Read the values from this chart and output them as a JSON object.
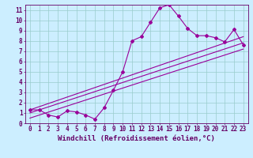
{
  "xlabel": "Windchill (Refroidissement éolien,°C)",
  "bg_color": "#cceeff",
  "line_color": "#990099",
  "xlim": [
    -0.5,
    23.5
  ],
  "ylim": [
    0,
    11.5
  ],
  "xticks": [
    0,
    1,
    2,
    3,
    4,
    5,
    6,
    7,
    8,
    9,
    10,
    11,
    12,
    13,
    14,
    15,
    16,
    17,
    18,
    19,
    20,
    21,
    22,
    23
  ],
  "yticks": [
    0,
    1,
    2,
    3,
    4,
    5,
    6,
    7,
    8,
    9,
    10,
    11
  ],
  "scatter_x": [
    0,
    1,
    2,
    3,
    4,
    5,
    6,
    7,
    8,
    9,
    10,
    11,
    12,
    13,
    14,
    15,
    16,
    17,
    18,
    19,
    20,
    21,
    22,
    23
  ],
  "scatter_y": [
    1.3,
    1.3,
    0.8,
    0.6,
    1.2,
    1.1,
    0.8,
    0.4,
    1.5,
    3.2,
    5.0,
    8.0,
    8.4,
    9.8,
    11.2,
    11.5,
    10.4,
    9.2,
    8.5,
    8.5,
    8.3,
    7.9,
    9.1,
    7.6
  ],
  "line1_x": [
    0,
    23
  ],
  "line1_y": [
    1.0,
    7.8
  ],
  "line2_x": [
    0,
    23
  ],
  "line2_y": [
    0.5,
    7.2
  ],
  "line3_x": [
    0,
    23
  ],
  "line3_y": [
    1.3,
    8.4
  ],
  "grid_color": "#99cccc",
  "font_color": "#660066",
  "tick_fontsize": 5.5,
  "xlabel_fontsize": 6.5
}
